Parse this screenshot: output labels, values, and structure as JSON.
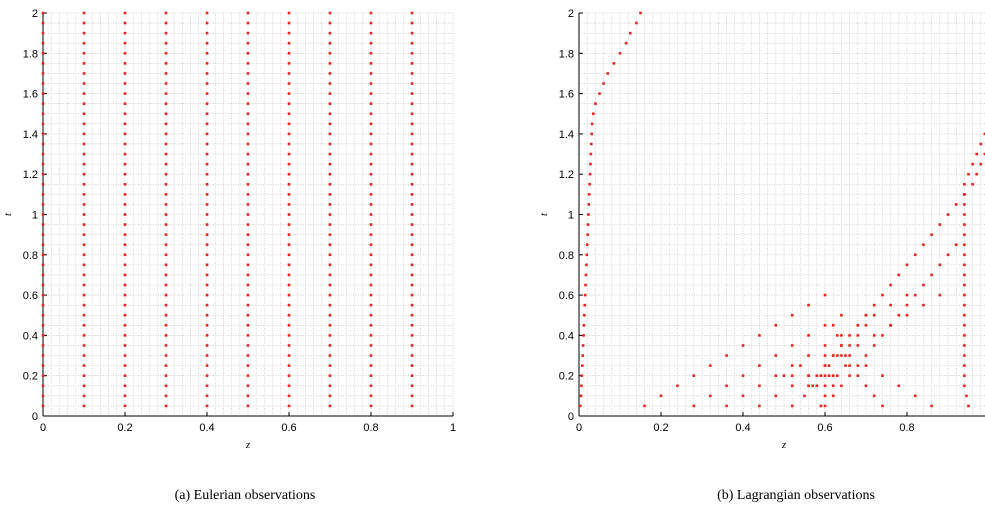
{
  "captions": {
    "a": "(a) Eulerian observations",
    "b": "(b) Lagrangian observations"
  },
  "colors": {
    "marker": "#e8251f",
    "grid": "#b9b9b9",
    "axis": "#000000"
  },
  "chart_data": [
    {
      "type": "scatter",
      "title": "",
      "xlabel": "z",
      "ylabel": "t",
      "xlim": [
        0,
        1
      ],
      "ylim": [
        0,
        2
      ],
      "xticks": [
        "0",
        "0.2",
        "0.4",
        "0.6",
        "0.8",
        "1"
      ],
      "yticks": [
        "0",
        "0.2",
        "0.4",
        "0.6",
        "0.8",
        "1",
        "1.2",
        "1.4",
        "1.6",
        "1.8",
        "2"
      ],
      "grid": true,
      "sensor_z": [
        0,
        0.1,
        0.2,
        0.3,
        0.4,
        0.5,
        0.6,
        0.7,
        0.8,
        0.9
      ],
      "time_step": 0.05,
      "time_range": [
        0.05,
        2
      ]
    },
    {
      "type": "scatter",
      "title": "",
      "xlabel": "z",
      "ylabel": "t",
      "xlim": [
        0,
        1
      ],
      "ylim": [
        0,
        2
      ],
      "xticks": [
        "0",
        "0.2",
        "0.4",
        "0.6",
        "0.8"
      ],
      "yticks": [
        "0",
        "0.2",
        "0.4",
        "0.6",
        "0.8",
        "1",
        "1.2",
        "1.4",
        "1.6",
        "1.8",
        "2"
      ],
      "grid": true,
      "series": [
        {
          "points": [
            [
              0.003,
              0.05
            ],
            [
              0.005,
              0.1
            ],
            [
              0.006,
              0.15
            ],
            [
              0.007,
              0.2
            ],
            [
              0.008,
              0.25
            ],
            [
              0.009,
              0.3
            ],
            [
              0.01,
              0.35
            ],
            [
              0.011,
              0.4
            ],
            [
              0.012,
              0.45
            ],
            [
              0.013,
              0.5
            ],
            [
              0.014,
              0.55
            ],
            [
              0.015,
              0.6
            ],
            [
              0.016,
              0.65
            ],
            [
              0.017,
              0.7
            ],
            [
              0.018,
              0.75
            ],
            [
              0.019,
              0.8
            ],
            [
              0.02,
              0.85
            ],
            [
              0.021,
              0.9
            ],
            [
              0.022,
              0.95
            ],
            [
              0.023,
              1.0
            ],
            [
              0.024,
              1.05
            ],
            [
              0.025,
              1.1
            ],
            [
              0.026,
              1.15
            ],
            [
              0.027,
              1.2
            ],
            [
              0.028,
              1.25
            ],
            [
              0.029,
              1.3
            ],
            [
              0.03,
              1.35
            ],
            [
              0.031,
              1.4
            ],
            [
              0.032,
              1.45
            ],
            [
              0.035,
              1.5
            ],
            [
              0.04,
              1.55
            ],
            [
              0.05,
              1.6
            ],
            [
              0.06,
              1.65
            ],
            [
              0.07,
              1.7
            ],
            [
              0.085,
              1.75
            ],
            [
              0.1,
              1.8
            ],
            [
              0.115,
              1.85
            ],
            [
              0.125,
              1.9
            ],
            [
              0.14,
              1.95
            ],
            [
              0.15,
              2.0
            ]
          ]
        },
        {
          "points": [
            [
              0.16,
              0.05
            ],
            [
              0.2,
              0.1
            ],
            [
              0.24,
              0.15
            ],
            [
              0.28,
              0.2
            ],
            [
              0.32,
              0.25
            ],
            [
              0.36,
              0.3
            ],
            [
              0.4,
              0.35
            ],
            [
              0.44,
              0.4
            ],
            [
              0.48,
              0.45
            ],
            [
              0.52,
              0.5
            ],
            [
              0.56,
              0.55
            ],
            [
              0.6,
              0.6
            ]
          ]
        },
        {
          "points": [
            [
              0.28,
              0.05
            ],
            [
              0.32,
              0.1
            ],
            [
              0.36,
              0.15
            ],
            [
              0.4,
              0.2
            ],
            [
              0.44,
              0.25
            ],
            [
              0.48,
              0.3
            ],
            [
              0.52,
              0.35
            ],
            [
              0.56,
              0.4
            ],
            [
              0.6,
              0.45
            ],
            [
              0.64,
              0.5
            ]
          ]
        },
        {
          "points": [
            [
              0.36,
              0.05
            ],
            [
              0.4,
              0.1
            ],
            [
              0.44,
              0.15
            ],
            [
              0.48,
              0.2
            ],
            [
              0.52,
              0.25
            ],
            [
              0.56,
              0.3
            ],
            [
              0.6,
              0.35
            ],
            [
              0.64,
              0.4
            ],
            [
              0.68,
              0.45
            ],
            [
              0.72,
              0.5
            ],
            [
              0.76,
              0.55
            ],
            [
              0.8,
              0.6
            ]
          ]
        },
        {
          "points": [
            [
              0.44,
              0.05
            ],
            [
              0.48,
              0.1
            ],
            [
              0.52,
              0.15
            ],
            [
              0.56,
              0.2
            ],
            [
              0.6,
              0.25
            ],
            [
              0.64,
              0.3
            ],
            [
              0.68,
              0.35
            ],
            [
              0.72,
              0.4
            ],
            [
              0.76,
              0.45
            ],
            [
              0.8,
              0.5
            ],
            [
              0.84,
              0.55
            ],
            [
              0.88,
              0.6
            ]
          ]
        },
        {
          "points": [
            [
              0.52,
              0.05
            ],
            [
              0.55,
              0.1
            ],
            [
              0.57,
              0.15
            ],
            [
              0.59,
              0.2
            ],
            [
              0.6,
              0.25
            ],
            [
              0.62,
              0.3
            ],
            [
              0.64,
              0.35
            ],
            [
              0.66,
              0.4
            ],
            [
              0.68,
              0.45
            ],
            [
              0.7,
              0.5
            ],
            [
              0.72,
              0.55
            ],
            [
              0.74,
              0.6
            ],
            [
              0.76,
              0.65
            ],
            [
              0.78,
              0.7
            ],
            [
              0.8,
              0.75
            ],
            [
              0.82,
              0.8
            ],
            [
              0.84,
              0.85
            ],
            [
              0.86,
              0.9
            ],
            [
              0.88,
              0.95
            ],
            [
              0.9,
              1.0
            ],
            [
              0.92,
              1.05
            ],
            [
              0.94,
              1.1
            ],
            [
              0.96,
              1.15
            ],
            [
              0.97,
              1.2
            ],
            [
              0.98,
              1.25
            ],
            [
              0.99,
              1.3
            ],
            [
              1.0,
              1.35
            ],
            [
              1.0,
              1.4
            ]
          ]
        },
        {
          "points": [
            [
              0.59,
              0.05
            ],
            [
              0.6,
              0.1
            ],
            [
              0.6,
              0.15
            ],
            [
              0.6,
              0.2
            ],
            [
              0.61,
              0.25
            ],
            [
              0.63,
              0.3
            ],
            [
              0.66,
              0.35
            ],
            [
              0.68,
              0.4
            ],
            [
              0.7,
              0.45
            ],
            [
              0.7,
              0.5
            ]
          ]
        },
        {
          "points": [
            [
              0.6,
              0.05
            ],
            [
              0.62,
              0.1
            ],
            [
              0.64,
              0.15
            ],
            [
              0.66,
              0.2
            ],
            [
              0.68,
              0.25
            ],
            [
              0.7,
              0.3
            ],
            [
              0.72,
              0.35
            ],
            [
              0.74,
              0.4
            ],
            [
              0.76,
              0.45
            ],
            [
              0.78,
              0.5
            ],
            [
              0.8,
              0.55
            ],
            [
              0.82,
              0.6
            ],
            [
              0.84,
              0.65
            ],
            [
              0.86,
              0.7
            ],
            [
              0.88,
              0.75
            ],
            [
              0.9,
              0.8
            ],
            [
              0.92,
              0.85
            ]
          ]
        },
        {
          "points": [
            [
              0.74,
              0.05
            ],
            [
              0.72,
              0.1
            ],
            [
              0.7,
              0.15
            ],
            [
              0.68,
              0.2
            ],
            [
              0.66,
              0.25
            ],
            [
              0.65,
              0.3
            ],
            [
              0.64,
              0.35
            ],
            [
              0.63,
              0.4
            ],
            [
              0.62,
              0.45
            ]
          ]
        },
        {
          "points": [
            [
              0.86,
              0.05
            ],
            [
              0.82,
              0.1
            ],
            [
              0.78,
              0.15
            ],
            [
              0.74,
              0.2
            ],
            [
              0.7,
              0.25
            ],
            [
              0.66,
              0.3
            ]
          ]
        },
        {
          "points": [
            [
              0.95,
              0.05
            ],
            [
              0.945,
              0.1
            ],
            [
              0.94,
              0.15
            ],
            [
              0.94,
              0.2
            ],
            [
              0.94,
              0.25
            ],
            [
              0.94,
              0.3
            ],
            [
              0.94,
              0.35
            ],
            [
              0.94,
              0.4
            ],
            [
              0.94,
              0.45
            ],
            [
              0.94,
              0.5
            ],
            [
              0.94,
              0.55
            ],
            [
              0.94,
              0.6
            ],
            [
              0.94,
              0.65
            ],
            [
              0.94,
              0.7
            ],
            [
              0.94,
              0.75
            ],
            [
              0.94,
              0.8
            ],
            [
              0.94,
              0.85
            ],
            [
              0.94,
              0.9
            ],
            [
              0.94,
              0.95
            ],
            [
              0.94,
              1.0
            ],
            [
              0.94,
              1.05
            ],
            [
              0.94,
              1.1
            ],
            [
              0.94,
              1.15
            ],
            [
              0.95,
              1.2
            ],
            [
              0.96,
              1.25
            ],
            [
              0.97,
              1.3
            ],
            [
              0.98,
              1.35
            ],
            [
              0.99,
              1.4
            ]
          ]
        },
        {
          "points": [
            [
              0.52,
              0.2
            ],
            [
              0.56,
              0.2
            ],
            [
              0.58,
              0.2
            ],
            [
              0.59,
              0.2
            ],
            [
              0.61,
              0.2
            ],
            [
              0.62,
              0.2
            ],
            [
              0.56,
              0.15
            ],
            [
              0.58,
              0.15
            ],
            [
              0.62,
              0.15
            ],
            [
              0.63,
              0.2
            ],
            [
              0.65,
              0.25
            ],
            [
              0.6,
              0.3
            ],
            [
              0.62,
              0.3
            ],
            [
              0.54,
              0.25
            ],
            [
              0.5,
              0.2
            ]
          ]
        }
      ]
    }
  ]
}
